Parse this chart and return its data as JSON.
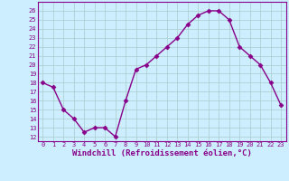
{
  "x": [
    0,
    1,
    2,
    3,
    4,
    5,
    6,
    7,
    8,
    9,
    10,
    11,
    12,
    13,
    14,
    15,
    16,
    17,
    18,
    19,
    20,
    21,
    22,
    23
  ],
  "y": [
    18,
    17.5,
    15,
    14,
    12.5,
    13,
    13,
    12,
    16,
    19.5,
    20,
    21,
    22,
    23,
    24.5,
    25.5,
    26,
    26,
    25,
    22,
    21,
    20,
    18,
    15.5
  ],
  "line_color": "#880088",
  "marker": "D",
  "markersize": 2.5,
  "linewidth": 1.0,
  "xlabel": "Windchill (Refroidissement éolien,°C)",
  "xlim": [
    -0.5,
    23.5
  ],
  "ylim": [
    11.5,
    27
  ],
  "yticks": [
    12,
    13,
    14,
    15,
    16,
    17,
    18,
    19,
    20,
    21,
    22,
    23,
    24,
    25,
    26
  ],
  "xticks": [
    0,
    1,
    2,
    3,
    4,
    5,
    6,
    7,
    8,
    9,
    10,
    11,
    12,
    13,
    14,
    15,
    16,
    17,
    18,
    19,
    20,
    21,
    22,
    23
  ],
  "bg_color": "#cceeff",
  "grid_color": "#aacccc",
  "tick_fontsize": 5.0,
  "xlabel_fontsize": 6.5,
  "spine_color": "#880088"
}
